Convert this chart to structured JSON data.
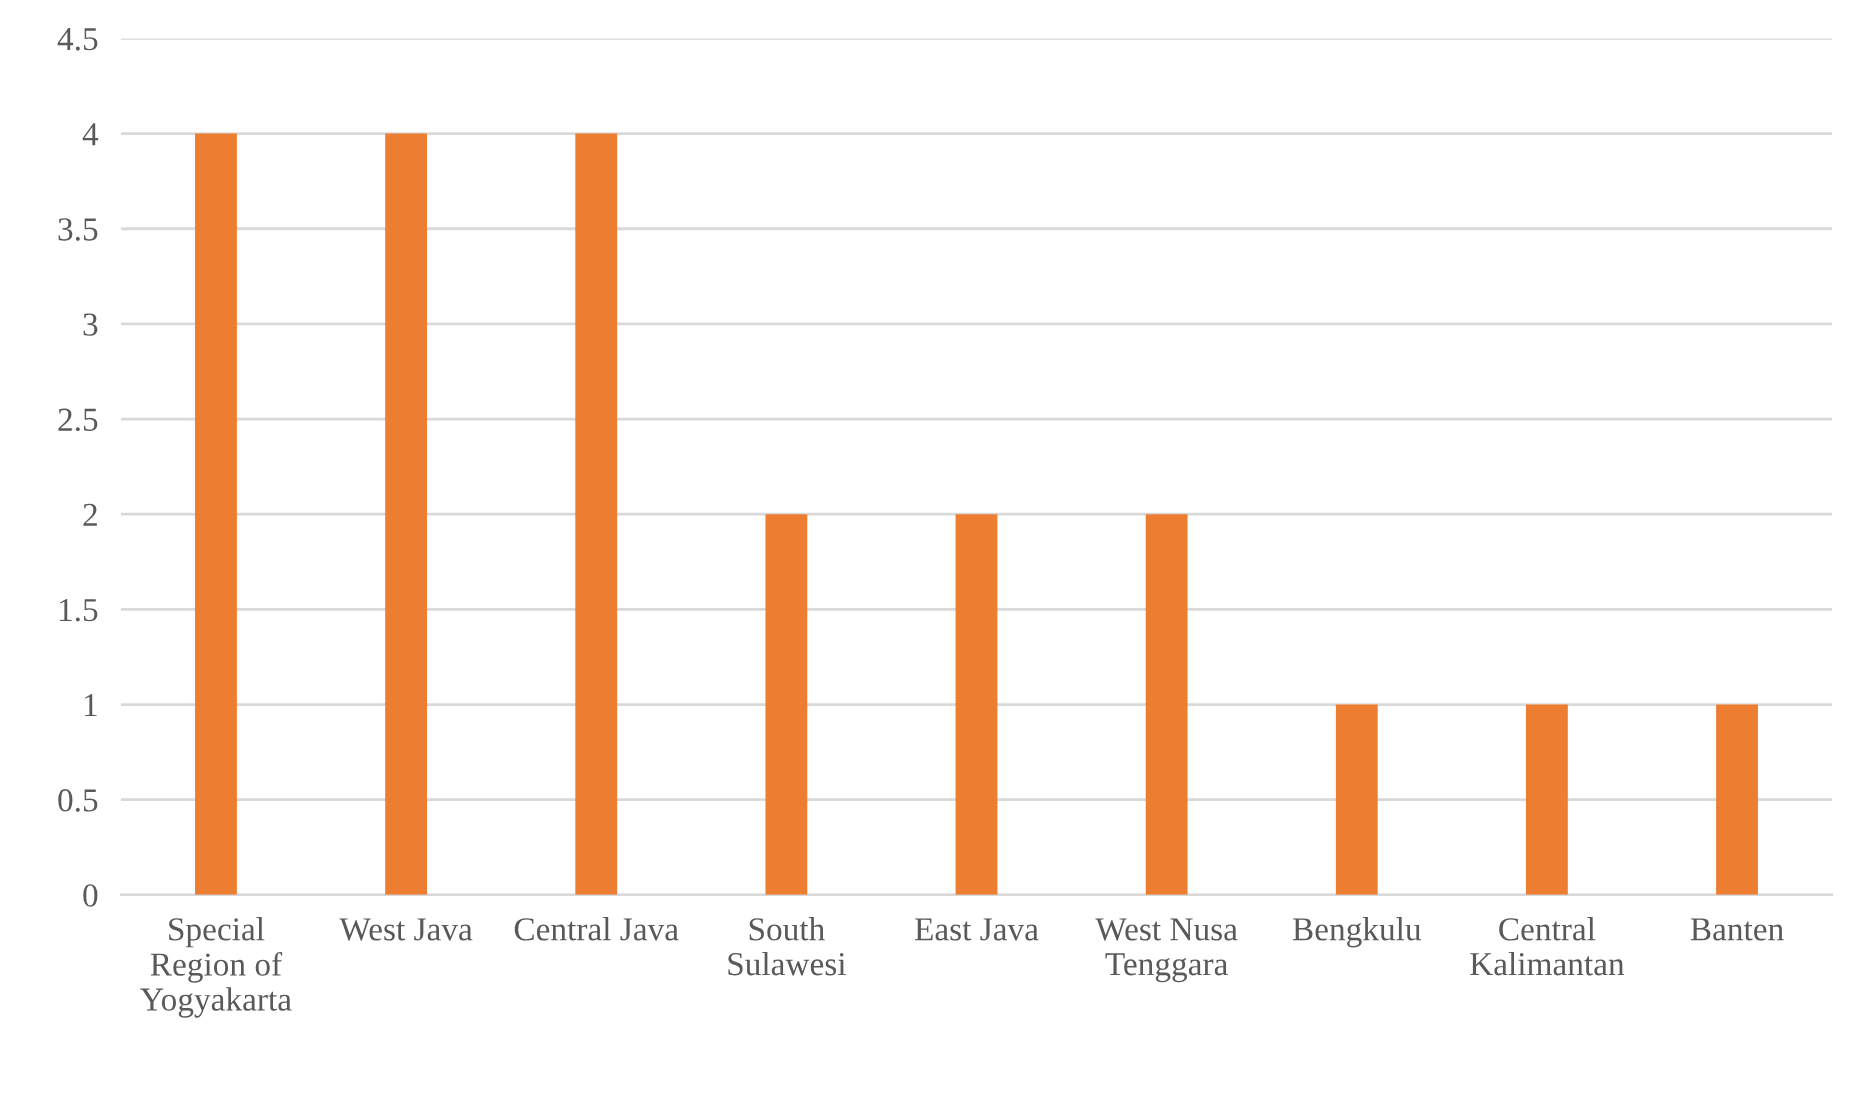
{
  "chart_data": {
    "type": "bar",
    "categories": [
      "Special\nRegion of\nYogyakarta",
      "West Java",
      "Central Java",
      "South\nSulawesi",
      "East Java",
      "West Nusa\nTenggara",
      "Bengkulu",
      "Central\nKalimantan",
      "Banten"
    ],
    "values": [
      4,
      4,
      4,
      2,
      2,
      2,
      1,
      1,
      1
    ],
    "color": "#ed7d31",
    "ylim": [
      0,
      4.5
    ],
    "yticks": [
      0,
      0.5,
      1,
      1.5,
      2,
      2.5,
      3,
      3.5,
      4,
      4.5
    ],
    "grid": "y",
    "legend": false
  }
}
